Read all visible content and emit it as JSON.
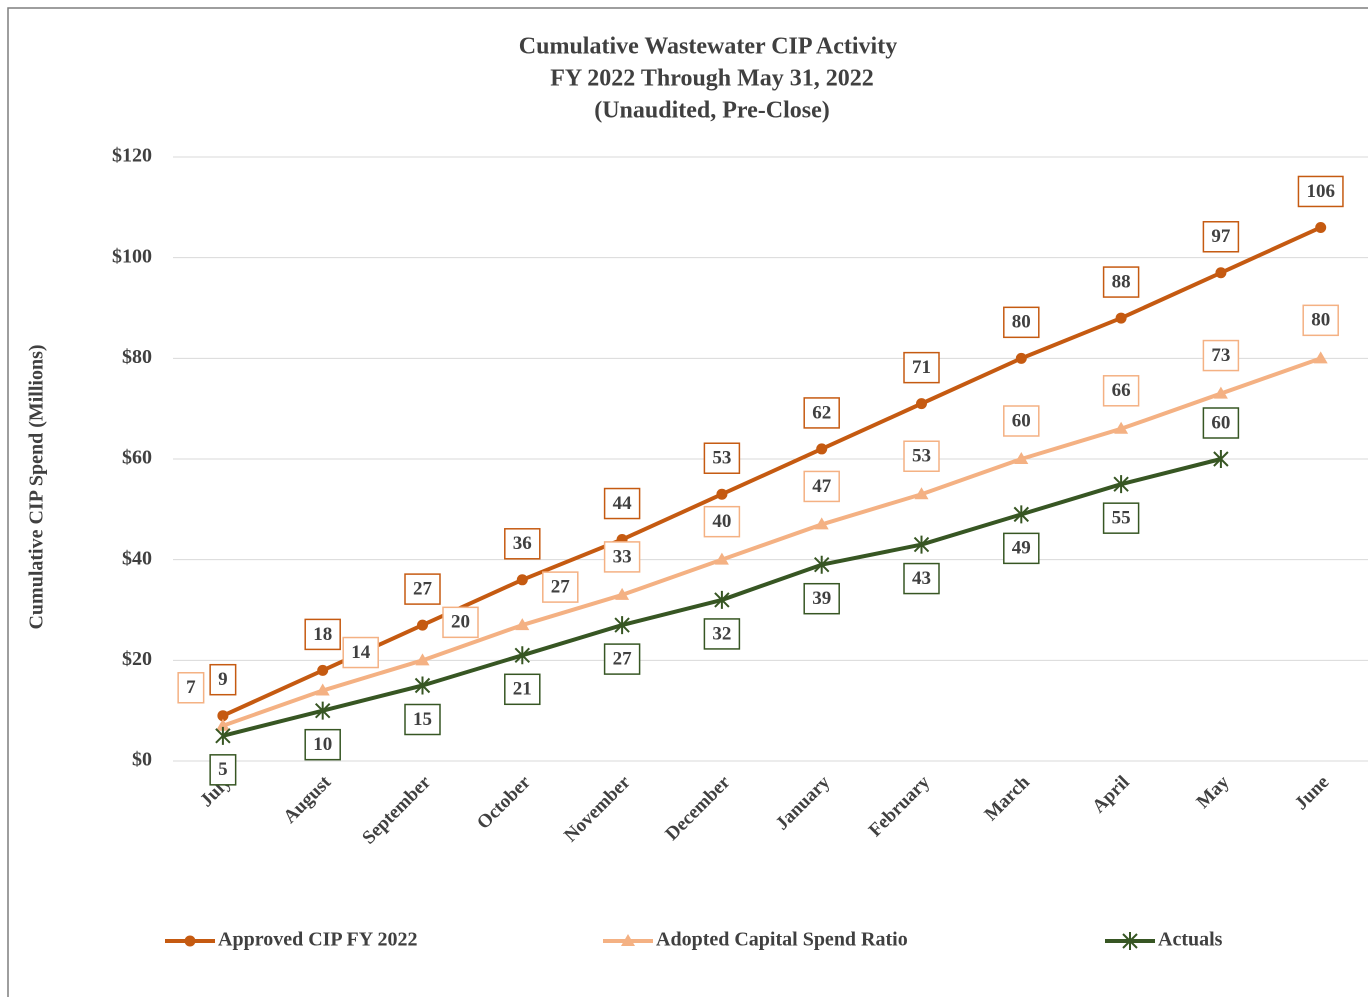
{
  "chart_data": {
    "type": "line",
    "title": [
      "Cumulative Wastewater CIP Activity",
      "FY 2022 Through May 31, 2022",
      "(Unaudited, Pre-Close)"
    ],
    "y_label": "Cumulative CIP Spend (Millions)",
    "categories": [
      "July",
      "August",
      "September",
      "October",
      "November",
      "December",
      "January",
      "February",
      "March",
      "April",
      "May",
      "June"
    ],
    "series": [
      {
        "name": "Approved CIP FY 2022",
        "color": "#c55a11",
        "marker": "circle",
        "values": [
          9,
          18,
          27,
          36,
          44,
          53,
          62,
          71,
          80,
          88,
          97,
          106
        ]
      },
      {
        "name": "Adopted Capital Spend Ratio",
        "color": "#f4b183",
        "marker": "triangle",
        "values": [
          7,
          14,
          20,
          27,
          33,
          40,
          47,
          53,
          60,
          66,
          73,
          80
        ]
      },
      {
        "name": "Actuals",
        "color": "#375623",
        "marker": "star",
        "values": [
          5,
          10,
          15,
          21,
          27,
          32,
          39,
          43,
          49,
          55,
          60,
          null
        ]
      }
    ],
    "ylim": [
      0,
      120
    ],
    "yticks": [
      {
        "value": 0,
        "label": "$0"
      },
      {
        "value": 20,
        "label": "$20"
      },
      {
        "value": 40,
        "label": "$40"
      },
      {
        "value": 60,
        "label": "$60"
      },
      {
        "value": 80,
        "label": "$80"
      },
      {
        "value": 100,
        "label": "$100"
      },
      {
        "value": 120,
        "label": "$120"
      }
    ],
    "grid": true,
    "legend": "bottom",
    "data_labels": true
  }
}
